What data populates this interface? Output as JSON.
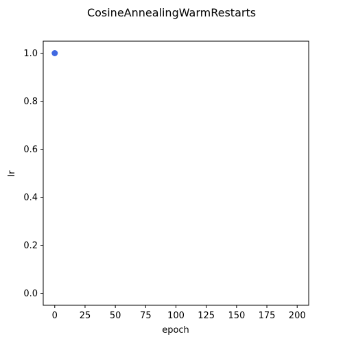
{
  "chart_data": {
    "type": "scatter",
    "title": "CosineAnnealingWarmRestarts",
    "xlabel": "epoch",
    "ylabel": "lr",
    "xlim": [
      -9.5,
      209.5
    ],
    "ylim": [
      -0.05,
      1.05
    ],
    "xticks": [
      0,
      25,
      50,
      75,
      100,
      125,
      150,
      175,
      200
    ],
    "yticks": [
      0.0,
      0.2,
      0.4,
      0.6,
      0.8,
      1.0
    ],
    "xtick_labels": [
      "0",
      "25",
      "50",
      "75",
      "100",
      "125",
      "150",
      "175",
      "200"
    ],
    "ytick_labels": [
      "0.0",
      "0.2",
      "0.4",
      "0.6",
      "0.8",
      "1.0"
    ],
    "grid": false,
    "series": [
      {
        "color": "#4169e1",
        "points": [
          {
            "x": 0,
            "y": 1.0
          }
        ]
      }
    ]
  }
}
